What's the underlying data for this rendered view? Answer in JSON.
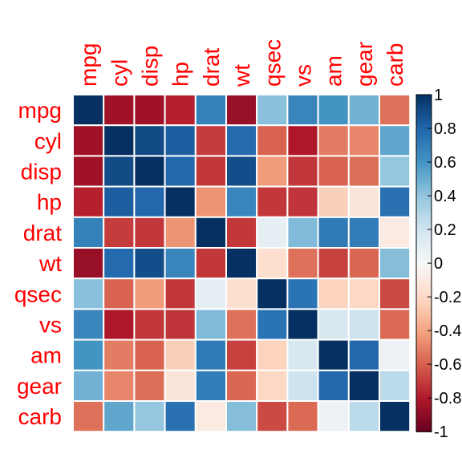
{
  "chart_data": {
    "type": "heatmap",
    "title": "",
    "variables": [
      "mpg",
      "cyl",
      "disp",
      "hp",
      "drat",
      "wt",
      "qsec",
      "vs",
      "am",
      "gear",
      "carb"
    ],
    "matrix": [
      [
        1.0,
        -0.85,
        -0.85,
        -0.78,
        0.68,
        -0.87,
        0.42,
        0.66,
        0.6,
        0.48,
        -0.55
      ],
      [
        -0.85,
        1.0,
        0.9,
        0.83,
        -0.7,
        0.78,
        -0.59,
        -0.81,
        -0.52,
        -0.49,
        0.53
      ],
      [
        -0.85,
        0.9,
        1.0,
        0.79,
        -0.71,
        0.89,
        -0.43,
        -0.71,
        -0.59,
        -0.56,
        0.39
      ],
      [
        -0.78,
        0.83,
        0.79,
        1.0,
        -0.45,
        0.66,
        -0.71,
        -0.72,
        -0.24,
        -0.13,
        0.75
      ],
      [
        0.68,
        -0.7,
        -0.71,
        -0.45,
        1.0,
        -0.71,
        0.09,
        0.44,
        0.71,
        0.7,
        -0.09
      ],
      [
        -0.87,
        0.78,
        0.89,
        0.66,
        -0.71,
        1.0,
        -0.17,
        -0.55,
        -0.69,
        -0.58,
        0.43
      ],
      [
        0.42,
        -0.59,
        -0.43,
        -0.71,
        0.09,
        -0.17,
        1.0,
        0.74,
        -0.23,
        -0.21,
        -0.66
      ],
      [
        0.66,
        -0.81,
        -0.71,
        -0.72,
        0.44,
        -0.55,
        0.74,
        1.0,
        0.17,
        0.21,
        -0.57
      ],
      [
        0.6,
        -0.52,
        -0.59,
        -0.24,
        0.71,
        -0.69,
        -0.23,
        0.17,
        1.0,
        0.79,
        0.06
      ],
      [
        0.48,
        -0.49,
        -0.56,
        -0.13,
        0.7,
        -0.58,
        -0.21,
        0.21,
        0.79,
        1.0,
        0.27
      ],
      [
        -0.55,
        0.53,
        0.39,
        0.75,
        -0.09,
        0.43,
        -0.66,
        -0.57,
        0.06,
        0.27,
        1.0
      ]
    ],
    "colorbar": {
      "range": [
        -1,
        1
      ],
      "ticks": [
        "1",
        "0.8",
        "0.6",
        "0.4",
        "0.2",
        "0",
        "-0.2",
        "-0.4",
        "-0.6",
        "-0.8",
        "-1"
      ],
      "tick_values": [
        1,
        0.8,
        0.6,
        0.4,
        0.2,
        0,
        -0.2,
        -0.4,
        -0.6,
        -0.8,
        -1
      ],
      "placement": "right"
    },
    "colors": {
      "label": "#ff0000",
      "tick": "#000000",
      "cell_border": "#ffffff",
      "palette": [
        "#67001f",
        "#b2182b",
        "#d6604d",
        "#f4a582",
        "#fddbc7",
        "#f7f7f7",
        "#d1e5f0",
        "#92c5de",
        "#4393c3",
        "#2166ac",
        "#053061"
      ]
    }
  }
}
